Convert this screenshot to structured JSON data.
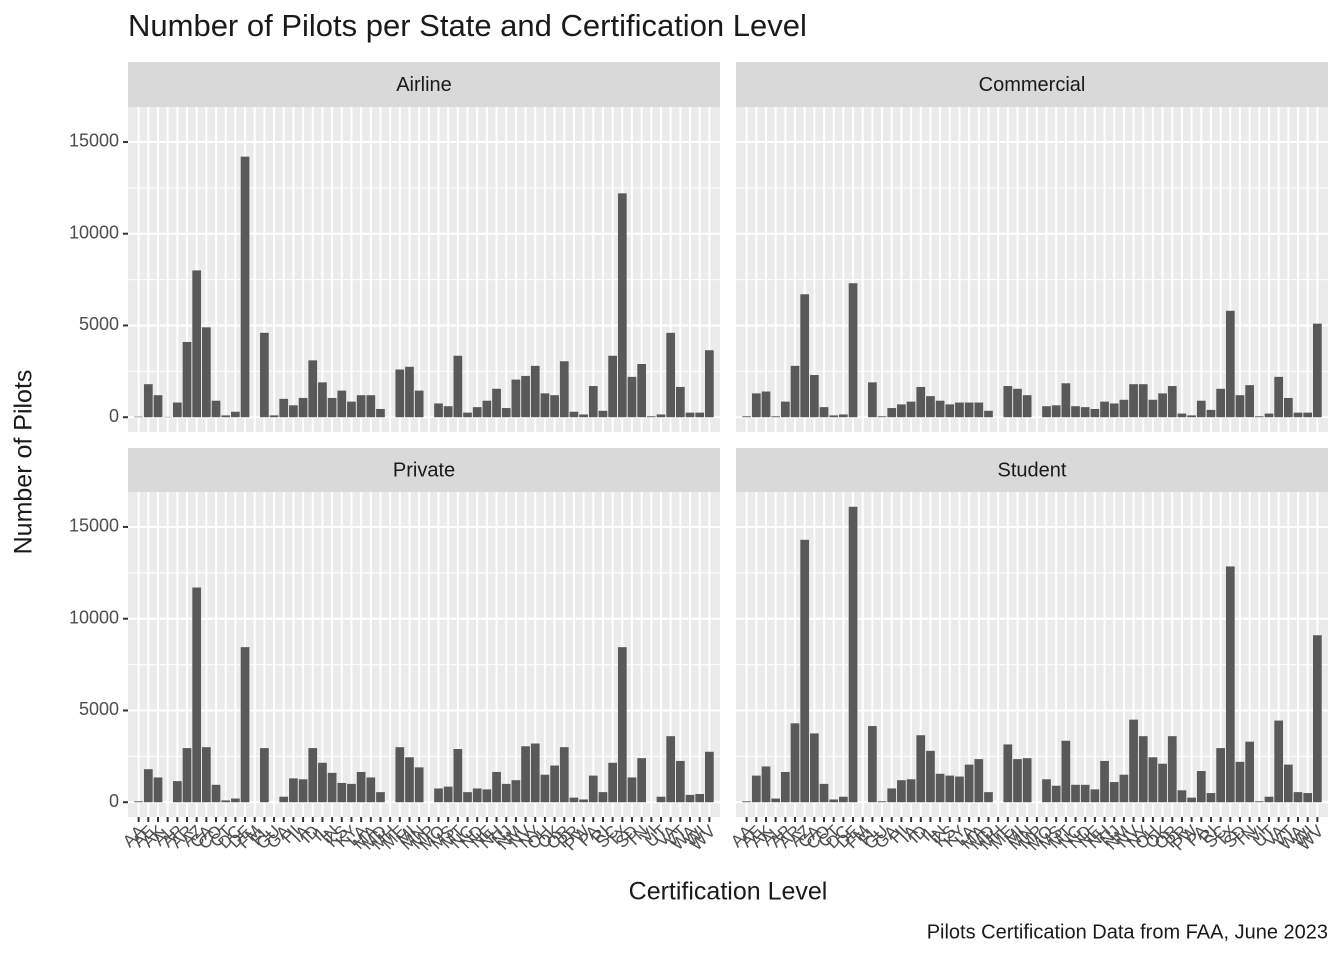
{
  "chart_data": {
    "type": "bar",
    "title": "Number of Pilots per State and Certification Level",
    "x_label": "Certification Level",
    "y_label": "Number of Pilots",
    "caption": "Pilots Certification Data from FAA, June 2023",
    "categories": [
      "AA",
      "AE",
      "AK",
      "AL",
      "AP",
      "AR",
      "AZ",
      "CA",
      "CO",
      "CT",
      "DC",
      "DE",
      "FM",
      "FL",
      "GU",
      "GA",
      "HI",
      "IA",
      "ID",
      "IL",
      "IN",
      "KS",
      "KY",
      "LA",
      "MA",
      "MD",
      "MH",
      "ME",
      "MI",
      "MN",
      "MP",
      "MO",
      "MS",
      "MT",
      "NC",
      "ND",
      "NE",
      "NH",
      "NJ",
      "NM",
      "NV",
      "NY",
      "OH",
      "OK",
      "OR",
      "PR",
      "PW",
      "PA",
      "RI",
      "SC",
      "TX",
      "SD",
      "TN",
      "VI",
      "UT",
      "VA",
      "VT",
      "WA",
      "WI",
      "WV"
    ],
    "series": [
      {
        "name": "Airline",
        "color": "#595959",
        "values": [
          30,
          1800,
          1200,
          20,
          800,
          4100,
          8000,
          4900,
          900,
          100,
          300,
          14200,
          0,
          4600,
          100,
          1000,
          650,
          1050,
          3100,
          1900,
          1050,
          1450,
          850,
          1200,
          1200,
          450,
          0,
          2600,
          2750,
          1450,
          0,
          750,
          600,
          3350,
          250,
          550,
          900,
          1550,
          500,
          2050,
          2250,
          2800,
          1300,
          1200,
          3050,
          300,
          150,
          1700,
          350,
          3350,
          12200,
          2200,
          2900,
          50,
          150,
          4600,
          1650,
          250,
          250,
          3650
        ]
      },
      {
        "name": "Commercial",
        "color": "#595959",
        "values": [
          50,
          1300,
          1400,
          50,
          850,
          2800,
          6700,
          2300,
          550,
          100,
          150,
          7300,
          0,
          1900,
          50,
          500,
          700,
          850,
          1650,
          1150,
          900,
          700,
          800,
          800,
          800,
          350,
          0,
          1700,
          1550,
          1200,
          0,
          600,
          650,
          1850,
          600,
          550,
          450,
          850,
          750,
          950,
          1800,
          1800,
          950,
          1300,
          1700,
          200,
          100,
          900,
          400,
          1550,
          5800,
          1200,
          1750,
          50,
          200,
          2200,
          1050,
          250,
          250,
          5100
        ]
      },
      {
        "name": "Private",
        "color": "#595959",
        "values": [
          50,
          1800,
          1350,
          0,
          1150,
          2950,
          11700,
          3000,
          950,
          100,
          200,
          8450,
          0,
          2950,
          0,
          300,
          1300,
          1250,
          2950,
          2150,
          1600,
          1050,
          1000,
          1650,
          1350,
          550,
          0,
          3000,
          2450,
          1900,
          0,
          750,
          850,
          2900,
          550,
          750,
          700,
          1650,
          1000,
          1200,
          3050,
          3200,
          1500,
          2000,
          3000,
          250,
          150,
          1450,
          550,
          2150,
          8450,
          1350,
          2400,
          0,
          300,
          3600,
          2250,
          400,
          450,
          2750
        ]
      },
      {
        "name": "Student",
        "color": "#595959",
        "values": [
          50,
          1450,
          1950,
          200,
          1650,
          4300,
          14300,
          3750,
          1000,
          150,
          300,
          16100,
          0,
          4150,
          50,
          750,
          1200,
          1250,
          3650,
          2800,
          1550,
          1450,
          1400,
          2050,
          2350,
          550,
          0,
          3150,
          2350,
          2400,
          0,
          1250,
          900,
          3350,
          950,
          950,
          700,
          2250,
          1100,
          1500,
          4500,
          3600,
          2450,
          2100,
          3600,
          650,
          250,
          1700,
          500,
          2950,
          12850,
          2200,
          3300,
          50,
          300,
          4450,
          2050,
          550,
          500,
          9100
        ]
      }
    ],
    "ylim": [
      -805,
      16905
    ],
    "yticks": [
      0,
      5000,
      10000,
      15000
    ],
    "grid": true
  }
}
